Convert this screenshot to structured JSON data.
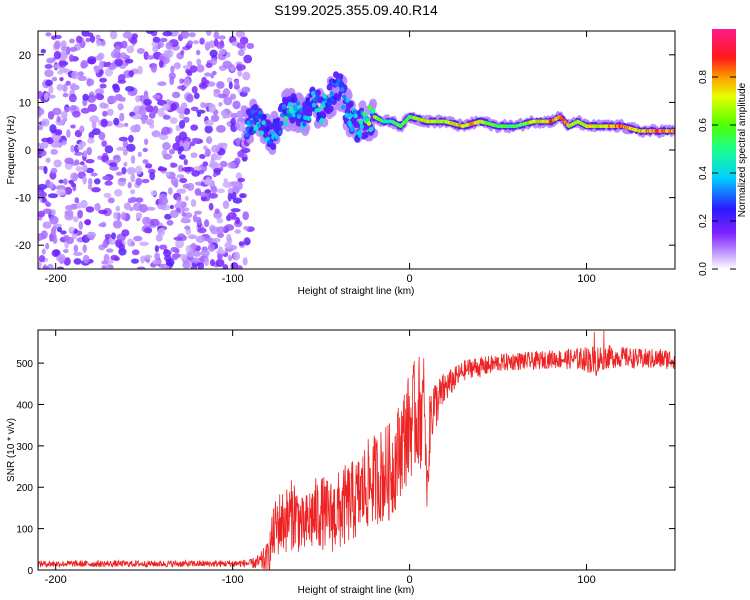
{
  "title": "S199.2025.355.09.40.R14",
  "chart_data": [
    {
      "type": "heatmap",
      "title": "S199.2025.355.09.40.R14",
      "xlabel": "Height of straight line (km)",
      "ylabel": "Frequency (Hz)",
      "xlim": [
        -210,
        150
      ],
      "ylim": [
        -25,
        25
      ],
      "x_ticks": [
        "-200",
        "-100",
        "0",
        "100"
      ],
      "y_ticks": [
        "-20",
        "-10",
        "0",
        "10",
        "20"
      ],
      "noise_region": {
        "x_start": -210,
        "x_end": -90,
        "description_values": {
          "amplitude_range": [
            0.05,
            0.3
          ]
        }
      },
      "ridge": {
        "x": [
          -92,
          -85,
          -80,
          -75,
          -70,
          -65,
          -60,
          -55,
          -50,
          -45,
          -40,
          -35,
          -30,
          -25,
          -20,
          -15,
          -10,
          -5,
          0,
          10,
          20,
          30,
          40,
          50,
          60,
          70,
          80,
          85,
          90,
          95,
          100,
          110,
          120,
          130,
          140,
          150
        ],
        "freq": [
          5,
          7,
          3,
          4,
          8,
          9,
          6,
          11,
          8,
          11,
          14,
          8,
          5,
          6,
          7,
          6,
          6,
          5,
          7,
          6,
          6,
          5,
          6,
          5,
          5,
          6,
          6,
          7,
          5,
          6,
          5,
          5,
          5,
          4,
          4,
          4
        ],
        "amplitude": [
          0.3,
          0.45,
          0.35,
          0.4,
          0.5,
          0.45,
          0.4,
          0.4,
          0.45,
          0.35,
          0.3,
          0.4,
          0.45,
          0.55,
          0.75,
          0.55,
          0.55,
          0.6,
          0.65,
          0.85,
          0.75,
          0.85,
          0.8,
          0.6,
          0.6,
          0.75,
          0.85,
          0.9,
          0.8,
          0.7,
          0.75,
          0.85,
          0.9,
          0.85,
          0.95,
          0.9
        ]
      },
      "colorbar": {
        "label": "Normalized spectral amplitude",
        "ticks": [
          "0.0",
          "0.2",
          "0.4",
          "0.6",
          "0.8"
        ],
        "range": [
          0,
          1
        ]
      }
    },
    {
      "type": "line",
      "xlabel": "Height of straight line (km)",
      "ylabel": "SNR (10 * v/v)",
      "xlim": [
        -210,
        150
      ],
      "ylim": [
        0,
        580
      ],
      "x_ticks": [
        "-200",
        "-100",
        "0",
        "100"
      ],
      "y_ticks": [
        "0",
        "100",
        "200",
        "300",
        "400",
        "500"
      ],
      "color": "#ee2222",
      "series": [
        {
          "name": "SNR",
          "x": [
            -210,
            -190,
            -170,
            -150,
            -130,
            -110,
            -90,
            -85,
            -80,
            -78,
            -75,
            -70,
            -65,
            -60,
            -55,
            -50,
            -45,
            -40,
            -35,
            -30,
            -25,
            -20,
            -15,
            -10,
            -5,
            -2,
            0,
            3,
            5,
            8,
            10,
            12,
            15,
            20,
            25,
            30,
            35,
            40,
            50,
            60,
            70,
            80,
            90,
            100,
            105,
            110,
            120,
            130,
            140,
            150
          ],
          "values": [
            15,
            15,
            15,
            15,
            15,
            15,
            16,
            18,
            30,
            70,
            110,
            120,
            140,
            100,
            130,
            140,
            130,
            140,
            160,
            170,
            200,
            220,
            230,
            240,
            300,
            330,
            350,
            370,
            380,
            390,
            150,
            390,
            400,
            440,
            460,
            480,
            490,
            490,
            500,
            505,
            505,
            510,
            510,
            510,
            505,
            515,
            515,
            510,
            510,
            510
          ],
          "spread": [
            8,
            8,
            8,
            8,
            8,
            8,
            10,
            20,
            40,
            60,
            80,
            80,
            90,
            70,
            90,
            90,
            90,
            100,
            100,
            100,
            110,
            110,
            120,
            120,
            120,
            130,
            130,
            140,
            140,
            140,
            120,
            100,
            60,
            40,
            30,
            25,
            25,
            25,
            22,
            22,
            22,
            22,
            25,
            30,
            40,
            30,
            25,
            25,
            25,
            25
          ]
        }
      ]
    }
  ]
}
